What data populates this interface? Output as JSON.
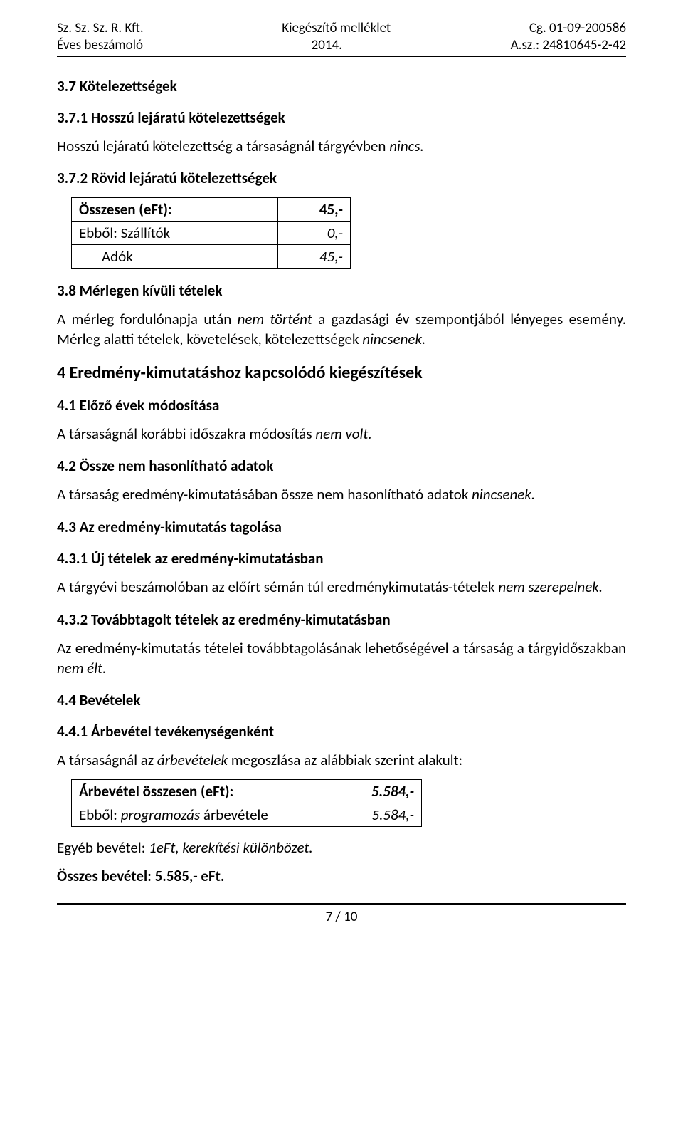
{
  "header": {
    "left_top": "Sz. Sz. Sz. R. Kft.",
    "left_bottom": "Éves beszámoló",
    "center_top": "Kiegészítő melléklet",
    "center_bottom": "2014.",
    "right_top": "Cg. 01-09-200586",
    "right_bottom": "A.sz.: 24810645-2-42"
  },
  "sections": {
    "s37_title": "3.7  Kötelezettségek",
    "s371_title": "3.7.1  Hosszú lejáratú kötelezettségek",
    "s371_text_pre": "Hosszú lejáratú kötelezettség a társaságnál tárgyévben ",
    "s371_text_em": "nincs.",
    "s372_title": "3.7.2  Rövid lejáratú kötelezettségek",
    "table372": {
      "rows": [
        {
          "label": "Összesen (eFt):",
          "bold": true,
          "value": "45,-",
          "value_bold": true,
          "value_italic": false
        },
        {
          "label": "Ebből: Szállítók",
          "bold": false,
          "value": "0,-",
          "value_bold": false,
          "value_italic": true
        },
        {
          "label": "Adók",
          "bold": false,
          "indent": true,
          "value": "45,-",
          "value_bold": false,
          "value_italic": true
        }
      ]
    },
    "s38_title": "3.8  Mérlegen kívüli tételek",
    "s38_text_a_pre": "A mérleg fordulónapja után ",
    "s38_text_a_em": "nem történt",
    "s38_text_a_post": " a gazdasági év szempontjából lényeges esemény. Mérleg alatti tételek, követelések, kötelezettségek ",
    "s38_text_a_em2": "nincsenek.",
    "s4_title": "4   Eredmény-kimutatáshoz kapcsolódó kiegészítések",
    "s41_title": "4.1  Előző évek módosítása",
    "s41_text_pre": "A társaságnál korábbi időszakra módosítás ",
    "s41_text_em": "nem volt.",
    "s42_title": "4.2  Össze nem hasonlítható adatok",
    "s42_text_pre": "A társaság eredmény-kimutatásában össze nem hasonlítható adatok ",
    "s42_text_em": "nincsenek.",
    "s43_title": "4.3  Az eredmény-kimutatás tagolása",
    "s431_title": "4.3.1  Új tételek az eredmény-kimutatásban",
    "s431_text_pre": "A tárgyévi beszámolóban az előírt sémán túl eredménykimutatás-tételek ",
    "s431_text_em": "nem szerepelnek.",
    "s432_title": "4.3.2  Továbbtagolt tételek az eredmény-kimutatásban",
    "s432_text_pre": "Az eredmény-kimutatás tételei továbbtagolásának lehetőségével a társaság a tárgyidőszakban ",
    "s432_text_em": "nem élt.",
    "s44_title": "4.4  Bevételek",
    "s441_title": "4.4.1  Árbevétel tevékenységenként",
    "s441_text_pre": "A társaságnál az ",
    "s441_text_em": "árbevételek",
    "s441_text_post": " megoszlása az alábbiak szerint alakult:",
    "table441": {
      "rows": [
        {
          "label": "Árbevétel összesen (eFt):",
          "bold": true,
          "value": "5.584,-",
          "value_bold": true,
          "value_italic": true
        },
        {
          "label_pre": "Ebből: ",
          "label_em": "programozás",
          "label_post": " árbevétele",
          "value": "5.584,-",
          "value_bold": false,
          "value_italic": true
        }
      ]
    },
    "s44_line2_pre": "Egyéb bevétel: ",
    "s44_line2_em": "1eFt, kerekítési különbözet.",
    "s44_line3": "Összes bevétel: 5.585,- eFt."
  },
  "footer": {
    "page": "7 / 10"
  }
}
